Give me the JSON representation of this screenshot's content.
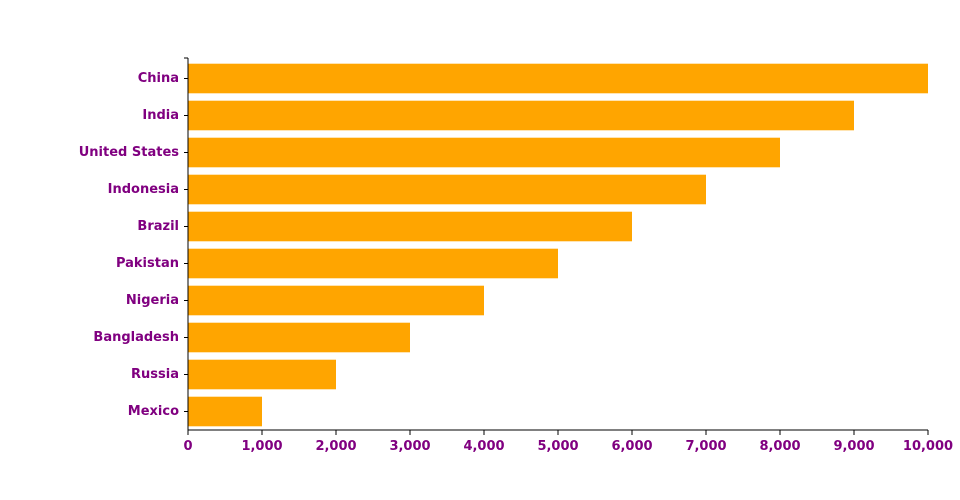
{
  "colors": {
    "bar": "#FFA500",
    "label": "#800080",
    "axis": "#000000",
    "background": "#FFFFFF"
  },
  "chart_data": {
    "type": "bar",
    "orientation": "horizontal",
    "title": "",
    "xlabel": "",
    "ylabel": "",
    "categories": [
      "China",
      "India",
      "United States",
      "Indonesia",
      "Brazil",
      "Pakistan",
      "Nigeria",
      "Bangladesh",
      "Russia",
      "Mexico"
    ],
    "values": [
      10000,
      9000,
      8000,
      7000,
      6000,
      5000,
      4000,
      3000,
      2000,
      1000
    ],
    "xlim": [
      0,
      10000
    ],
    "xticks": [
      0,
      1000,
      2000,
      3000,
      4000,
      5000,
      6000,
      7000,
      8000,
      9000,
      10000
    ],
    "xtick_labels": [
      "0",
      "1,000",
      "2,000",
      "3,000",
      "4,000",
      "5,000",
      "6,000",
      "7,000",
      "8,000",
      "9,000",
      "10,000"
    ],
    "grid": false,
    "legend": "none"
  }
}
